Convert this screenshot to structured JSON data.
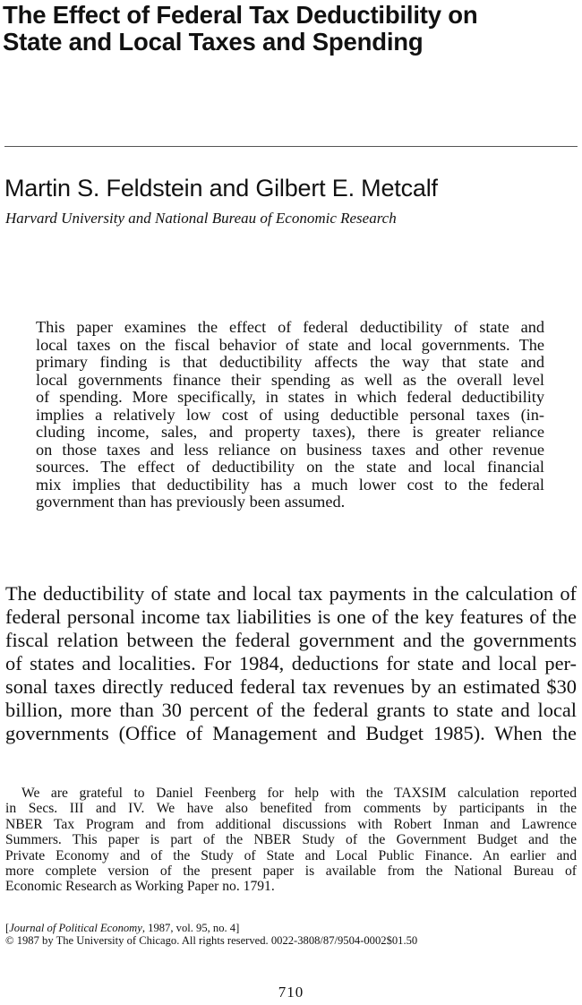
{
  "title": {
    "lines": [
      "The Effect of Federal Tax Deductibility on",
      "State and Local Taxes and Spending"
    ]
  },
  "authors": "Martin S. Feldstein and Gilbert E. Metcalf",
  "affiliation": "Harvard University and National Bureau of Economic Research",
  "abstract": {
    "lines": [
      "This paper examines the effect of federal deductibility of state and",
      "local taxes on the fiscal behavior of state and local governments. The",
      "primary finding is that deductibility affects the way that state and",
      "local governments finance their spending as well as the overall level",
      "of spending. More specifically, in states in which federal deductibility",
      "implies a relatively low cost of using deductible personal taxes (in-",
      "cluding income, sales, and property taxes), there is greater reliance",
      "on those taxes and less reliance on business taxes and other revenue",
      "sources. The effect of deductibility on the state and local financial",
      "mix implies that deductibility has a much lower cost to the federal",
      "government than has previously been assumed."
    ]
  },
  "body": {
    "lines": [
      "The deductibility of state and local tax payments in the calculation of",
      "federal personal income tax liabilities is one of the key features of the",
      "fiscal relation between the federal government and the governments",
      "of states and localities. For 1984, deductions for state and local per-",
      "sonal taxes directly reduced federal tax revenues by an estimated $30",
      "billion, more than 30 percent of the federal grants to state and local",
      "governments (Office of Management and Budget 1985). When the"
    ]
  },
  "footnote": {
    "lines": [
      "We are grateful to Daniel Feenberg for help with the TAXSIM calculation reported",
      "in Secs. III and IV. We have also benefited from comments by participants in the",
      "NBER Tax Program and from additional discussions with Robert Inman and Lawrence",
      "Summers. This paper is part of the NBER Study of the Government Budget and the",
      "Private Economy and of the Study of State and Local Public Finance. An earlier and",
      "more complete version of the present paper is available from the National Bureau of",
      "Economic Research as Working Paper no. 1791."
    ]
  },
  "citation": {
    "open": "[",
    "journal": "Journal of Political Economy",
    "rest": ", 1987, vol. 95, no. 4]"
  },
  "copyright": "© 1987 by The University of Chicago. All rights reserved. 0022-3808/87/9504-0002$01.50",
  "page_number": "710"
}
